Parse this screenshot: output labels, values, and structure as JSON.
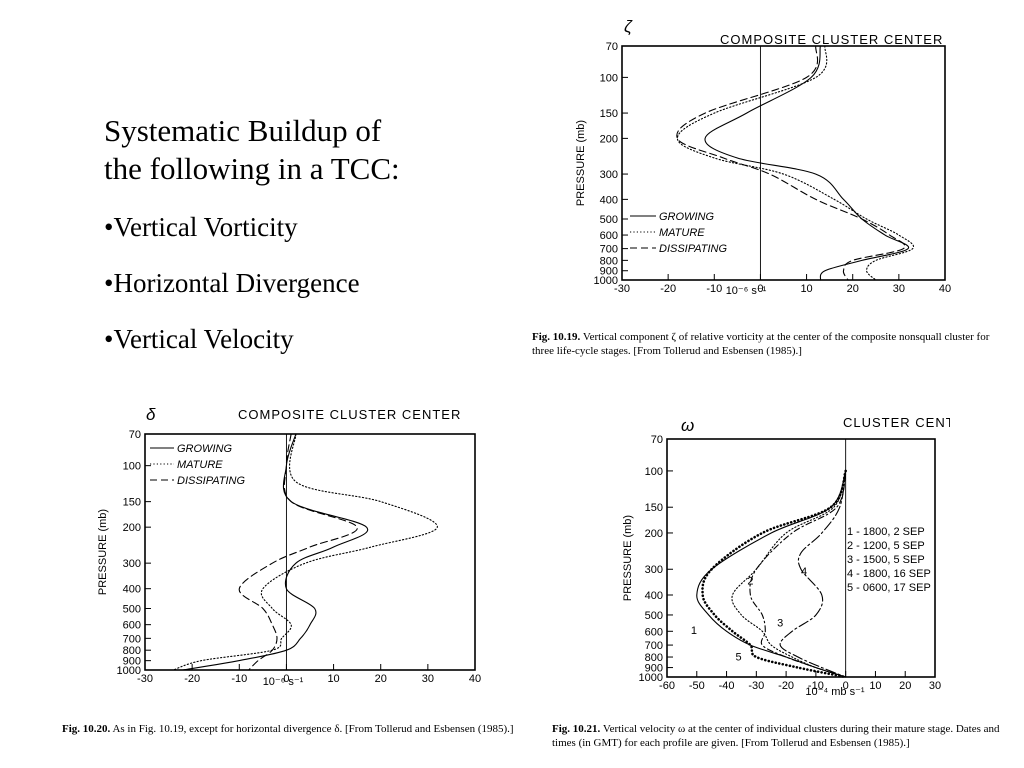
{
  "slide": {
    "title_line1": "Systematic Buildup of",
    "title_line2": "the following in a TCC:",
    "bullets": [
      "•Vertical  Vorticity",
      "•Horizontal Divergence",
      "•Vertical Velocity"
    ]
  },
  "colors": {
    "ink": "#000000",
    "background": "#ffffff"
  },
  "chart_data": [
    {
      "id": "vorticity",
      "type": "line",
      "symbol": "ζ",
      "title": "COMPOSITE CLUSTER CENTER",
      "ylabel": "PRESSURE (mb)",
      "xlabel": "10⁻⁶ s⁻¹",
      "xlim": [
        -30,
        40
      ],
      "ylim": [
        1000,
        70
      ],
      "y_scale": "log-reversed",
      "xticks": [
        -30,
        -20,
        -10,
        0,
        10,
        20,
        30,
        40
      ],
      "yticks": [
        70,
        100,
        150,
        200,
        300,
        400,
        500,
        600,
        700,
        800,
        900,
        1000
      ],
      "zero_line": true,
      "legend_position": "lower-left",
      "legend": [
        "GROWING",
        "MATURE",
        "DISSIPATING"
      ],
      "series": [
        {
          "name": "GROWING",
          "style": "solid",
          "points": [
            [
              13,
              70
            ],
            [
              11,
              100
            ],
            [
              -3,
              150
            ],
            [
              -12,
              200
            ],
            [
              -5,
              250
            ],
            [
              12,
              300
            ],
            [
              18,
              400
            ],
            [
              22,
              500
            ],
            [
              27,
              600
            ],
            [
              32,
              700
            ],
            [
              22,
              800
            ],
            [
              14,
              900
            ],
            [
              13,
              1000
            ]
          ]
        },
        {
          "name": "MATURE",
          "style": "dotted",
          "points": [
            [
              14,
              70
            ],
            [
              12,
              100
            ],
            [
              -10,
              150
            ],
            [
              -18,
              200
            ],
            [
              -10,
              250
            ],
            [
              5,
              300
            ],
            [
              16,
              400
            ],
            [
              23,
              500
            ],
            [
              30,
              600
            ],
            [
              33,
              700
            ],
            [
              25,
              800
            ],
            [
              23,
              900
            ],
            [
              25,
              1000
            ]
          ]
        },
        {
          "name": "DISSIPATING",
          "style": "dashed",
          "points": [
            [
              12,
              70
            ],
            [
              10,
              100
            ],
            [
              -12,
              150
            ],
            [
              -18,
              200
            ],
            [
              -8,
              250
            ],
            [
              2,
              300
            ],
            [
              12,
              400
            ],
            [
              22,
              500
            ],
            [
              28,
              600
            ],
            [
              31,
              700
            ],
            [
              20,
              800
            ],
            [
              18,
              900
            ],
            [
              19,
              1000
            ]
          ]
        }
      ],
      "caption_label": "Fig. 10.19.",
      "caption_text": "Vertical component ζ of relative vorticity at the center of the composite nonsquall cluster for three life-cycle stages. [From Tollerud and Esbensen (1985).]"
    },
    {
      "id": "divergence",
      "type": "line",
      "symbol": "δ",
      "title": "COMPOSITE CLUSTER CENTER",
      "ylabel": "PRESSURE (mb)",
      "xlabel": "10⁻⁶ s⁻¹",
      "xlim": [
        -30,
        40
      ],
      "ylim": [
        1000,
        70
      ],
      "y_scale": "log-reversed",
      "xticks": [
        -30,
        -20,
        -10,
        0,
        10,
        20,
        30,
        40
      ],
      "yticks": [
        70,
        100,
        150,
        200,
        300,
        400,
        500,
        600,
        700,
        800,
        900,
        1000
      ],
      "zero_line": true,
      "legend_position": "upper-left",
      "legend": [
        "GROWING",
        "MATURE",
        "DISSIPATING"
      ],
      "series": [
        {
          "name": "GROWING",
          "style": "solid",
          "points": [
            [
              2,
              70
            ],
            [
              0,
              100
            ],
            [
              1,
              150
            ],
            [
              17,
              200
            ],
            [
              10,
              250
            ],
            [
              2,
              300
            ],
            [
              0,
              400
            ],
            [
              6,
              500
            ],
            [
              5,
              600
            ],
            [
              3,
              700
            ],
            [
              0,
              800
            ],
            [
              -10,
              900
            ],
            [
              -22,
              1000
            ]
          ]
        },
        {
          "name": "MATURE",
          "style": "dotted",
          "points": [
            [
              2,
              70
            ],
            [
              2,
              120
            ],
            [
              20,
              150
            ],
            [
              32,
              200
            ],
            [
              18,
              250
            ],
            [
              4,
              300
            ],
            [
              -5,
              400
            ],
            [
              -3,
              500
            ],
            [
              1,
              600
            ],
            [
              -1,
              700
            ],
            [
              -3,
              800
            ],
            [
              -18,
              900
            ],
            [
              -24,
              1000
            ]
          ]
        },
        {
          "name": "DISSIPATING",
          "style": "dashed",
          "points": [
            [
              1,
              70
            ],
            [
              0,
              100
            ],
            [
              1,
              150
            ],
            [
              15,
              200
            ],
            [
              5,
              250
            ],
            [
              -3,
              300
            ],
            [
              -10,
              400
            ],
            [
              -5,
              500
            ],
            [
              -3,
              600
            ],
            [
              -2,
              700
            ],
            [
              -3,
              800
            ],
            [
              -6,
              900
            ],
            [
              -8,
              1000
            ]
          ]
        }
      ],
      "caption_label": "Fig. 10.20.",
      "caption_text": "As in Fig. 10.19, except for horizontal divergence δ. [From Tollerud and Esbensen (1985).]"
    },
    {
      "id": "omega",
      "type": "line",
      "symbol": "ω",
      "title": "CLUSTER CENTERS",
      "ylabel": "PRESSURE (mb)",
      "xlabel": "10⁻⁴ mb s⁻¹",
      "xlim": [
        -60,
        30
      ],
      "ylim": [
        1000,
        70
      ],
      "y_scale": "log-reversed",
      "xticks": [
        -60,
        -50,
        -40,
        -30,
        -20,
        -10,
        0,
        10,
        20,
        30
      ],
      "yticks": [
        70,
        100,
        150,
        200,
        300,
        400,
        500,
        600,
        700,
        800,
        900,
        1000
      ],
      "zero_line": true,
      "legend_position": "middle-right",
      "legend": [
        "1 - 1800, 2 SEP",
        "2 - 1200, 5 SEP",
        "3 - 1500, 5 SEP",
        "4 - 1800, 16 SEP",
        "5 - 0600, 17 SEP"
      ],
      "series": [
        {
          "name": "1",
          "style": "solid",
          "points": [
            [
              0,
              100
            ],
            [
              -5,
              150
            ],
            [
              -25,
              200
            ],
            [
              -45,
              300
            ],
            [
              -50,
              400
            ],
            [
              -46,
              500
            ],
            [
              -40,
              600
            ],
            [
              -32,
              700
            ],
            [
              -20,
              800
            ],
            [
              -10,
              900
            ],
            [
              0,
              1000
            ]
          ]
        },
        {
          "name": "2",
          "style": "dotted",
          "points": [
            [
              0,
              100
            ],
            [
              -4,
              150
            ],
            [
              -20,
              200
            ],
            [
              -30,
              300
            ],
            [
              -38,
              400
            ],
            [
              -35,
              500
            ],
            [
              -28,
              600
            ],
            [
              -25,
              700
            ],
            [
              -18,
              800
            ],
            [
              -10,
              900
            ],
            [
              0,
              1000
            ]
          ]
        },
        {
          "name": "3",
          "style": "dashdot",
          "points": [
            [
              0,
              100
            ],
            [
              -3,
              150
            ],
            [
              -18,
              200
            ],
            [
              -30,
              300
            ],
            [
              -32,
              400
            ],
            [
              -28,
              500
            ],
            [
              -27,
              600
            ],
            [
              -28,
              700
            ],
            [
              -20,
              800
            ],
            [
              -10,
              900
            ],
            [
              0,
              1000
            ]
          ]
        },
        {
          "name": "4",
          "style": "dashdot-long",
          "points": [
            [
              0,
              100
            ],
            [
              -2,
              150
            ],
            [
              -8,
              200
            ],
            [
              -15,
              250
            ],
            [
              -15,
              300
            ],
            [
              -8,
              400
            ],
            [
              -10,
              500
            ],
            [
              -18,
              600
            ],
            [
              -22,
              700
            ],
            [
              -16,
              800
            ],
            [
              -8,
              900
            ],
            [
              0,
              1000
            ]
          ]
        },
        {
          "name": "5",
          "style": "dots-bold",
          "points": [
            [
              0,
              100
            ],
            [
              -5,
              150
            ],
            [
              -28,
              200
            ],
            [
              -45,
              300
            ],
            [
              -48,
              400
            ],
            [
              -44,
              500
            ],
            [
              -38,
              600
            ],
            [
              -32,
              700
            ],
            [
              -30,
              800
            ],
            [
              -16,
              900
            ],
            [
              0,
              1000
            ]
          ]
        }
      ],
      "curve_labels": [
        {
          "text": "1",
          "x": -52,
          "y": 620
        },
        {
          "text": "2",
          "x": -33,
          "y": 355
        },
        {
          "text": "3",
          "x": -23,
          "y": 570
        },
        {
          "text": "4",
          "x": -15,
          "y": 320
        },
        {
          "text": "5",
          "x": -37,
          "y": 830
        }
      ],
      "caption_label": "Fig. 10.21.",
      "caption_text": "Vertical velocity ω at the center of individual clusters during their mature stage. Dates and times (in GMT) for each profile are given. [From Tollerud and Esbensen (1985).]"
    }
  ]
}
